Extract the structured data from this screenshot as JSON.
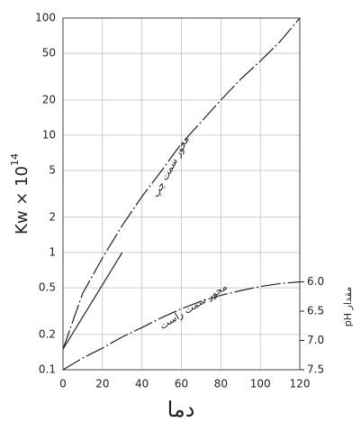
{
  "chart_data": {
    "type": "line",
    "ylabel": "Kw × 10",
    "ylabel_superscript": "14",
    "xlabel": "دما",
    "y2label": "pH مقدار",
    "annotations": [
      "محور سمت چپ",
      "محور سمت راست"
    ],
    "xlim": [
      0,
      120
    ],
    "xticks": [
      0,
      20,
      40,
      60,
      80,
      100,
      120
    ],
    "ylim": [
      0.1,
      100
    ],
    "yscale": "log",
    "yticks": [
      0.1,
      0.2,
      0.5,
      1,
      2,
      5,
      10,
      20,
      50,
      100
    ],
    "y2lim": [
      7.5,
      1.5
    ],
    "y2ticks": [
      {
        "value": 6,
        "label": "6.0"
      },
      6.5,
      {
        "value": 7,
        "label": "7.0"
      },
      7.5
    ],
    "grid": true,
    "series": [
      {
        "x": [
          0,
          10,
          20,
          30,
          40,
          50,
          60,
          70,
          80,
          90,
          100,
          110,
          120
        ],
        "values": [
          0.15,
          0.45,
          0.9,
          1.7,
          3.0,
          5.0,
          8.5,
          13,
          20,
          30,
          43,
          63,
          100
        ],
        "color": "#222222",
        "dash": true
      },
      {
        "x": [
          0,
          30
        ],
        "values": [
          0.15,
          1
        ],
        "color": "#222222",
        "dash": false
      },
      {
        "x": [
          0,
          10,
          20,
          30,
          40,
          50,
          60,
          70,
          80,
          90,
          100,
          110,
          120
        ],
        "values": [
          7.5,
          7.3,
          7.13,
          6.94,
          6.78,
          6.61,
          6.46,
          6.33,
          6.23,
          6.15,
          6.08,
          6.03,
          6.0
        ],
        "color": "#222222",
        "dash": true,
        "axis": "y2"
      }
    ]
  }
}
